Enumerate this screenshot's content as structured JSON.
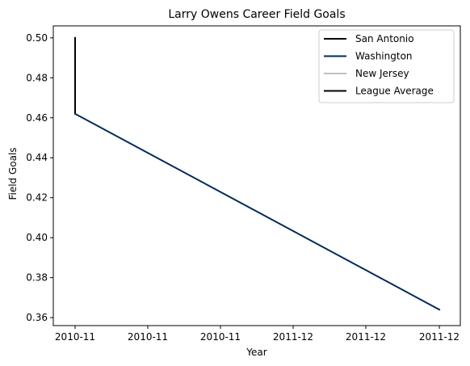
{
  "chart_data": {
    "type": "line",
    "title": "Larry Owens Career Field Goals",
    "xlabel": "Year",
    "ylabel": "Field Goals",
    "x_tick_labels": [
      "2010-11",
      "2010-11",
      "2010-11",
      "2011-12",
      "2011-12",
      "2011-12"
    ],
    "y_ticks": [
      0.36,
      0.38,
      0.4,
      0.42,
      0.44,
      0.46,
      0.48,
      0.5
    ],
    "y_tick_labels": [
      "0.36",
      "0.38",
      "0.40",
      "0.42",
      "0.44",
      "0.46",
      "0.48",
      "0.50"
    ],
    "ylim": [
      0.356,
      0.506
    ],
    "x_categories": [
      "2010-11",
      "2011-12"
    ],
    "legend_position": "top-right",
    "grid": false,
    "series": [
      {
        "name": "San Antonio",
        "color": "#000000",
        "points": [
          [
            "2010-11",
            0.462
          ],
          [
            "2010-11",
            0.5
          ]
        ]
      },
      {
        "name": "Washington",
        "color": "#002b5c",
        "points": [
          [
            "2010-11",
            0.462
          ],
          [
            "2011-12",
            0.364
          ]
        ]
      },
      {
        "name": "New Jersey",
        "color": "#c0c0c0",
        "points": []
      },
      {
        "name": "League Average",
        "color": "#000000",
        "points": []
      }
    ]
  }
}
